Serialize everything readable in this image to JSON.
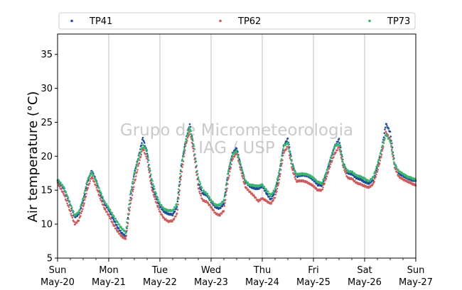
{
  "chart_data": {
    "type": "scatter",
    "ylabel": "Air temperature (°C)",
    "xlabel": "",
    "ylim": [
      5,
      38
    ],
    "yticks": [
      5,
      10,
      15,
      20,
      25,
      30,
      35
    ],
    "xlim_hours": [
      0,
      168
    ],
    "x_unit": "hours from Sun May-20 00:00",
    "xticks": [
      {
        "hour": 0,
        "day": "Sun",
        "date": "May-20"
      },
      {
        "hour": 24,
        "day": "Mon",
        "date": "May-21"
      },
      {
        "hour": 48,
        "day": "Tue",
        "date": "May-22"
      },
      {
        "hour": 72,
        "day": "Wed",
        "date": "May-23"
      },
      {
        "hour": 96,
        "day": "Thu",
        "date": "May-24"
      },
      {
        "hour": 120,
        "day": "Fri",
        "date": "May-25"
      },
      {
        "hour": 144,
        "day": "Sat",
        "date": "May-26"
      },
      {
        "hour": 168,
        "day": "Sun",
        "date": "May-27"
      }
    ],
    "minor_ticks_every_hours": 6,
    "grid": "vertical-major",
    "legend_position": "top, above plot",
    "watermark": [
      "Grupo de Micrometeorologia",
      "IAG / USP"
    ],
    "series": [
      {
        "name": "TP41",
        "color": "#1f4e96",
        "x": [
          0,
          3,
          6,
          8,
          10,
          12,
          14,
          16,
          18,
          20,
          22,
          24,
          26,
          28,
          30,
          32,
          34,
          36,
          38,
          40,
          42,
          44,
          46,
          48,
          50,
          52,
          54,
          56,
          58,
          60,
          62,
          64,
          66,
          68,
          70,
          72,
          74,
          76,
          78,
          80,
          82,
          84,
          86,
          88,
          90,
          92,
          94,
          96,
          98,
          100,
          102,
          104,
          106,
          108,
          110,
          112,
          114,
          116,
          118,
          120,
          122,
          124,
          126,
          128,
          130,
          132,
          134,
          136,
          138,
          140,
          142,
          144,
          146,
          148,
          150,
          152,
          154,
          156,
          158,
          160,
          162,
          164,
          166,
          168
        ],
        "values": [
          16.4,
          15.2,
          12.8,
          11.0,
          11.5,
          13.5,
          16.2,
          17.9,
          16.5,
          14.5,
          13.0,
          12.1,
          10.8,
          9.6,
          8.7,
          8.2,
          13.5,
          17.5,
          20.0,
          22.7,
          20.5,
          16.0,
          14.0,
          12.6,
          11.8,
          11.5,
          11.4,
          12.5,
          18.5,
          22.2,
          24.7,
          21.0,
          16.0,
          14.5,
          14.3,
          13.3,
          12.5,
          12.3,
          13.0,
          17.5,
          20.4,
          21.2,
          18.5,
          16.3,
          15.6,
          15.3,
          15.2,
          15.6,
          14.5,
          13.6,
          14.8,
          17.5,
          21.5,
          22.6,
          19.0,
          17.0,
          17.2,
          17.2,
          17.0,
          16.5,
          15.8,
          15.7,
          17.5,
          19.5,
          21.5,
          22.5,
          19.0,
          17.5,
          17.4,
          16.8,
          16.6,
          16.2,
          16.0,
          16.5,
          18.5,
          21.0,
          24.8,
          23.5,
          19.0,
          17.5,
          17.1,
          16.8,
          16.5,
          16.4
        ]
      },
      {
        "name": "TP62",
        "color": "#cd5c5c",
        "x": [
          0,
          3,
          6,
          8,
          10,
          12,
          14,
          16,
          18,
          20,
          22,
          24,
          26,
          28,
          30,
          32,
          34,
          36,
          38,
          40,
          42,
          44,
          46,
          48,
          50,
          52,
          54,
          56,
          58,
          60,
          62,
          64,
          66,
          68,
          70,
          72,
          74,
          76,
          78,
          80,
          82,
          84,
          86,
          88,
          90,
          92,
          94,
          96,
          98,
          100,
          102,
          104,
          106,
          108,
          110,
          112,
          114,
          116,
          118,
          120,
          122,
          124,
          126,
          128,
          130,
          132,
          134,
          136,
          138,
          140,
          142,
          144,
          146,
          148,
          150,
          152,
          154,
          156,
          158,
          160,
          162,
          164,
          166,
          168
        ],
        "values": [
          16.0,
          14.4,
          11.8,
          10.0,
          10.6,
          12.5,
          15.2,
          17.0,
          15.6,
          13.8,
          12.3,
          11.3,
          10.0,
          9.0,
          8.2,
          7.8,
          12.6,
          16.0,
          18.8,
          21.2,
          19.6,
          15.4,
          13.4,
          11.8,
          10.8,
          10.4,
          10.5,
          11.5,
          17.2,
          21.5,
          23.8,
          20.2,
          15.3,
          13.5,
          13.3,
          12.5,
          11.6,
          11.3,
          12.0,
          16.5,
          19.6,
          20.5,
          17.8,
          15.5,
          14.8,
          14.2,
          13.4,
          13.8,
          13.4,
          13.0,
          14.0,
          16.5,
          20.5,
          21.5,
          18.1,
          16.3,
          16.4,
          16.3,
          16.0,
          15.6,
          15.0,
          15.0,
          16.8,
          18.8,
          20.4,
          21.4,
          18.4,
          16.8,
          16.7,
          16.1,
          15.9,
          15.6,
          15.4,
          15.9,
          17.8,
          20.3,
          23.5,
          22.5,
          18.4,
          17.0,
          16.6,
          16.3,
          16.0,
          15.7
        ]
      },
      {
        "name": "TP73",
        "color": "#3cb371",
        "x": [
          0,
          3,
          6,
          8,
          10,
          12,
          14,
          16,
          18,
          20,
          22,
          24,
          26,
          28,
          30,
          32,
          34,
          36,
          38,
          40,
          42,
          44,
          46,
          48,
          50,
          52,
          54,
          56,
          58,
          60,
          62,
          64,
          66,
          68,
          70,
          72,
          74,
          76,
          78,
          80,
          82,
          84,
          86,
          88,
          90,
          92,
          94,
          96,
          98,
          100,
          102,
          104,
          106,
          108,
          110,
          112,
          114,
          116,
          118,
          120,
          122,
          124,
          126,
          128,
          130,
          132,
          134,
          136,
          138,
          140,
          142,
          144,
          146,
          148,
          150,
          152,
          154,
          156,
          158,
          160,
          162,
          164,
          166,
          168
        ],
        "values": [
          16.6,
          15.4,
          13.0,
          11.3,
          11.8,
          13.8,
          16.5,
          17.6,
          16.4,
          14.8,
          13.3,
          12.4,
          11.3,
          10.3,
          9.4,
          8.8,
          14.3,
          17.5,
          19.8,
          21.6,
          20.8,
          16.8,
          14.6,
          13.0,
          12.2,
          12.0,
          12.0,
          13.0,
          18.8,
          22.0,
          24.3,
          21.5,
          16.8,
          15.0,
          14.5,
          13.5,
          12.8,
          12.8,
          13.5,
          17.8,
          20.2,
          20.8,
          18.5,
          16.4,
          15.8,
          15.7,
          15.6,
          15.8,
          15.0,
          14.2,
          15.2,
          17.8,
          21.5,
          22.0,
          18.8,
          17.3,
          17.4,
          17.4,
          17.2,
          16.8,
          16.2,
          16.0,
          17.6,
          19.7,
          21.5,
          21.8,
          18.8,
          17.8,
          17.7,
          17.2,
          17.0,
          16.7,
          16.3,
          16.9,
          18.8,
          21.2,
          23.2,
          22.2,
          18.8,
          17.8,
          17.4,
          17.0,
          16.8,
          16.5
        ]
      }
    ]
  }
}
